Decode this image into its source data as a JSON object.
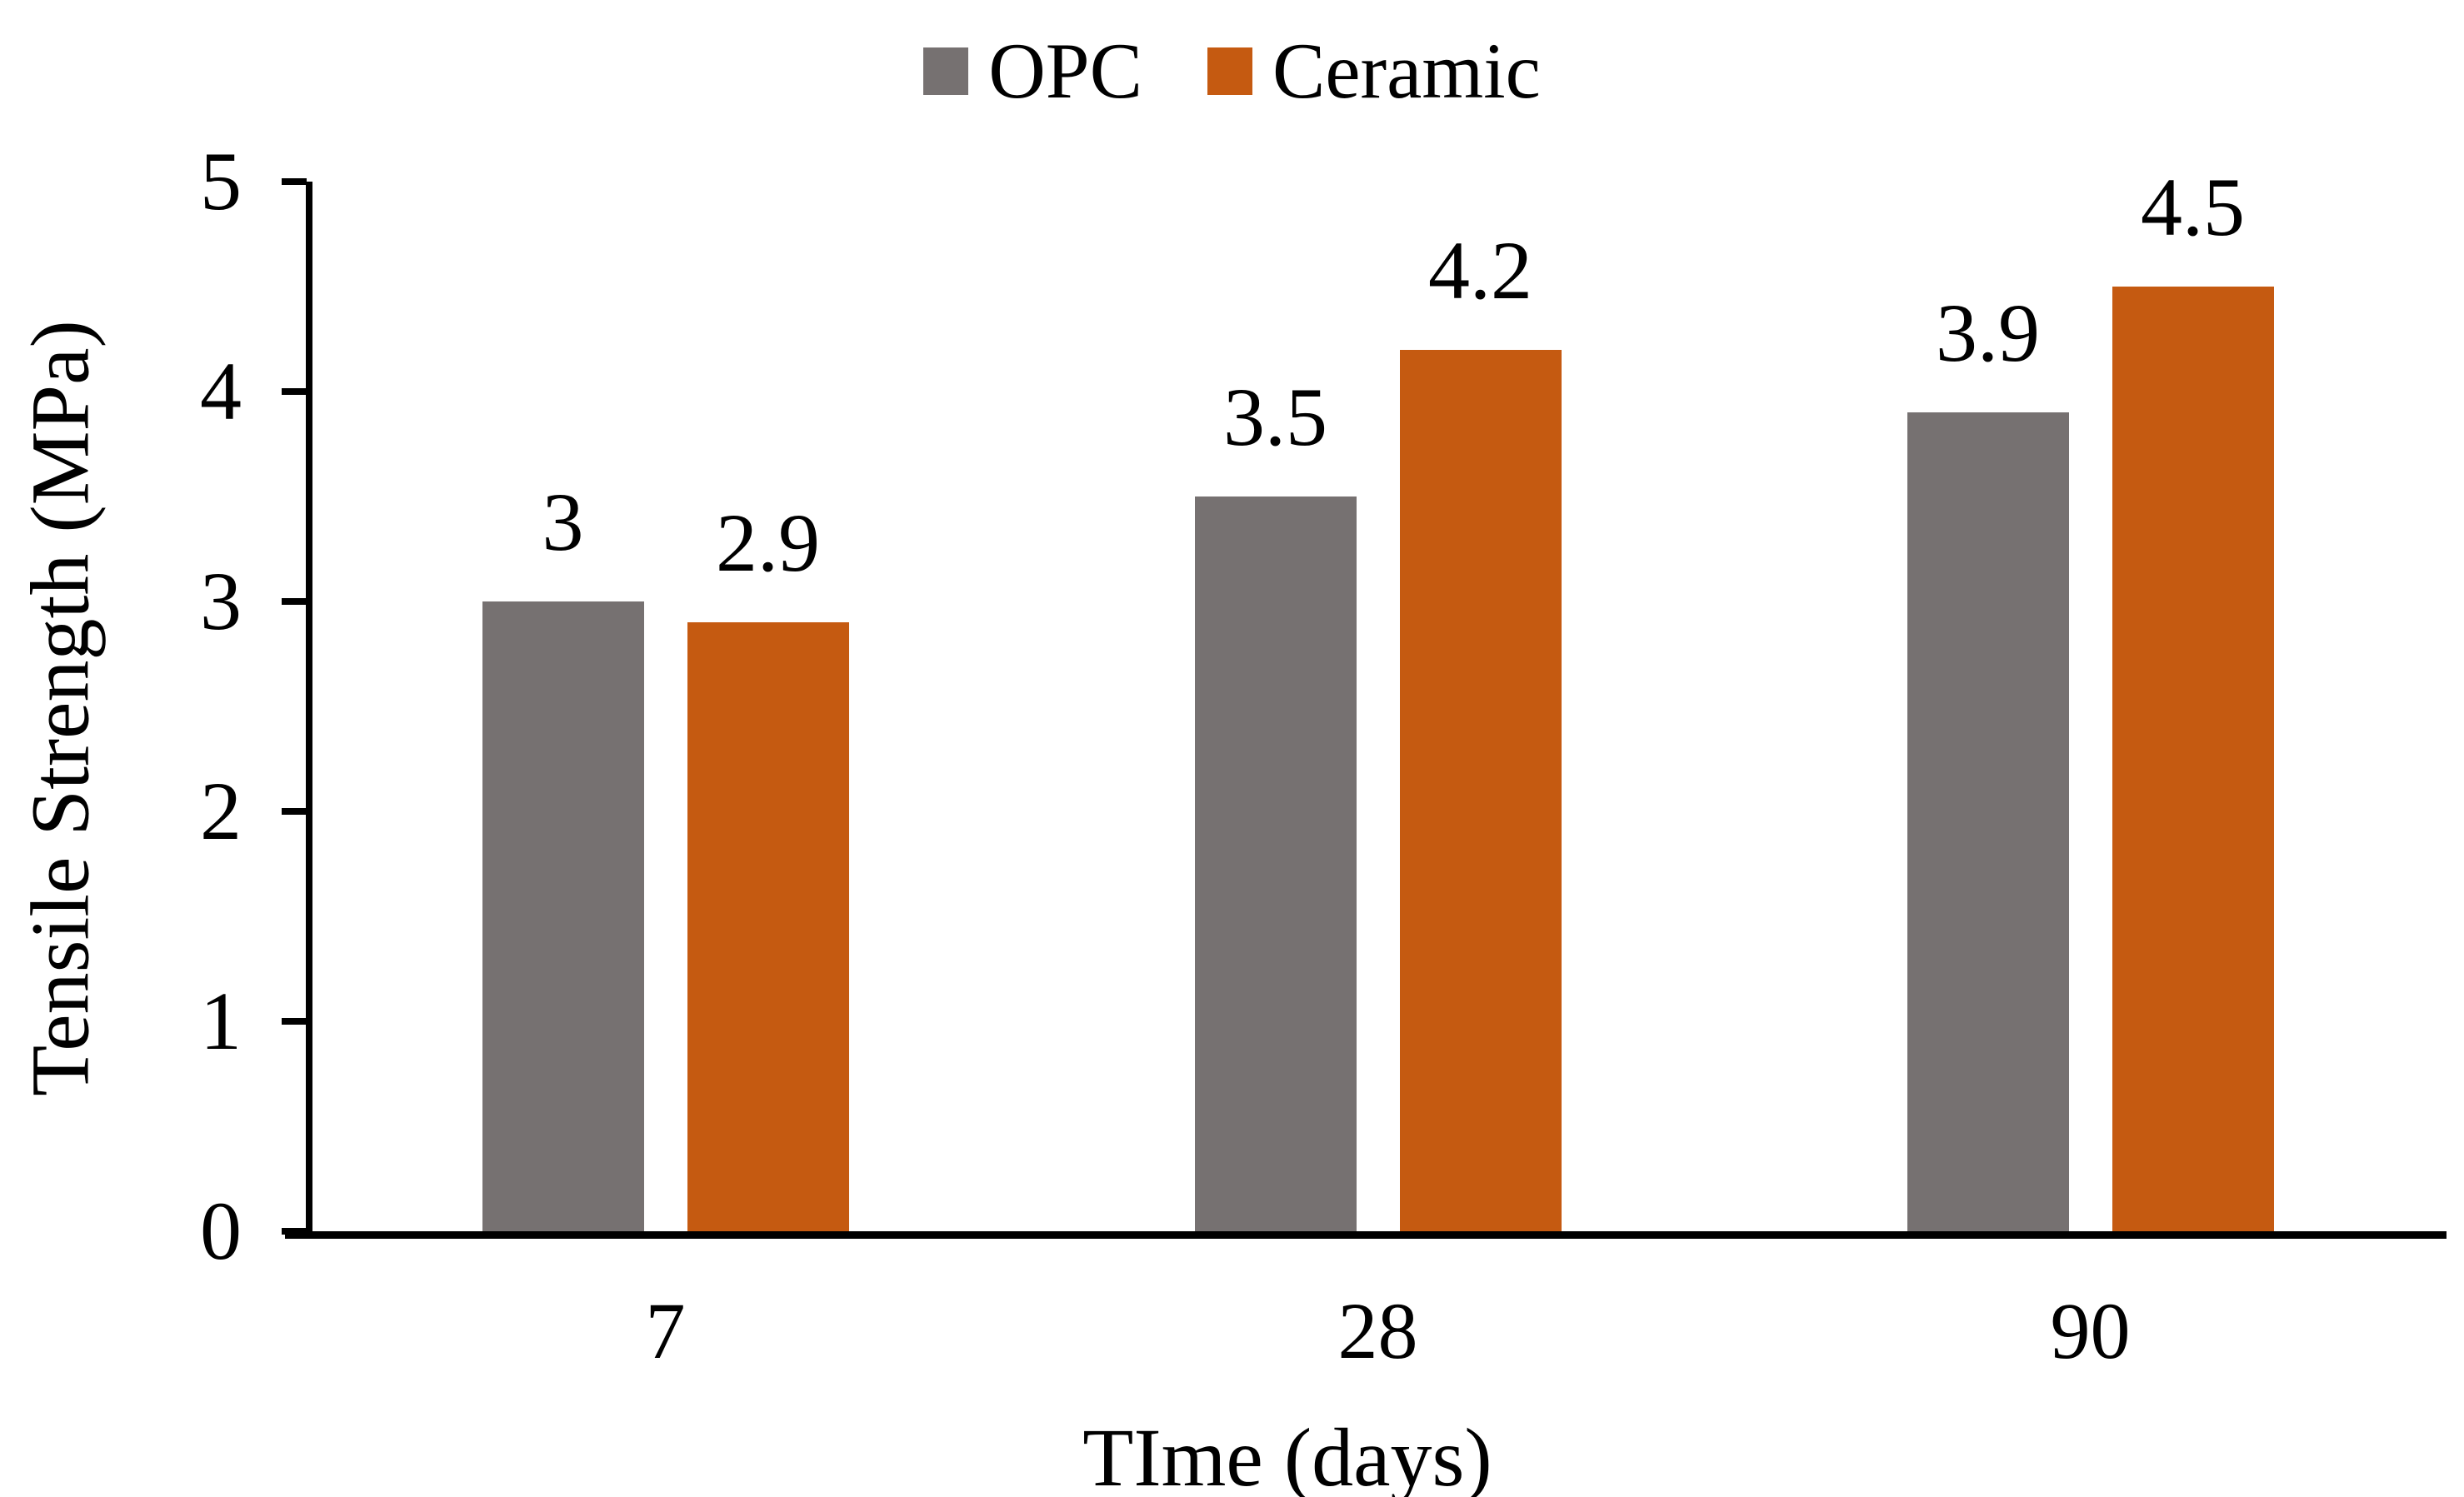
{
  "colors": {
    "opc": "#767171",
    "ceramic": "#C55A11",
    "axis": "#000000",
    "text": "#000000",
    "background": "#ffffff"
  },
  "legend": {
    "items": [
      {
        "label": "OPC",
        "color": "#767171"
      },
      {
        "label": "Ceramic",
        "color": "#C55A11"
      }
    ]
  },
  "chart_data": {
    "type": "bar",
    "categories": [
      "7",
      "28",
      "90"
    ],
    "series": [
      {
        "name": "OPC",
        "color": "#767171",
        "values": [
          3,
          3.5,
          3.9
        ]
      },
      {
        "name": "Ceramic",
        "color": "#C55A11",
        "values": [
          2.9,
          4.2,
          4.5
        ]
      }
    ],
    "data_labels": [
      [
        "3",
        "2.9"
      ],
      [
        "3.5",
        "4.2"
      ],
      [
        "3.9",
        "4.5"
      ]
    ],
    "title": "",
    "xlabel": "TIme (days)",
    "ylabel": "Tensile Strength (MPa)",
    "ylim": [
      0,
      5
    ],
    "yticks": [
      5,
      4,
      3,
      2,
      1,
      0
    ],
    "grid": false,
    "legend_position": "top-center",
    "bar_value_labels_shown": true
  }
}
